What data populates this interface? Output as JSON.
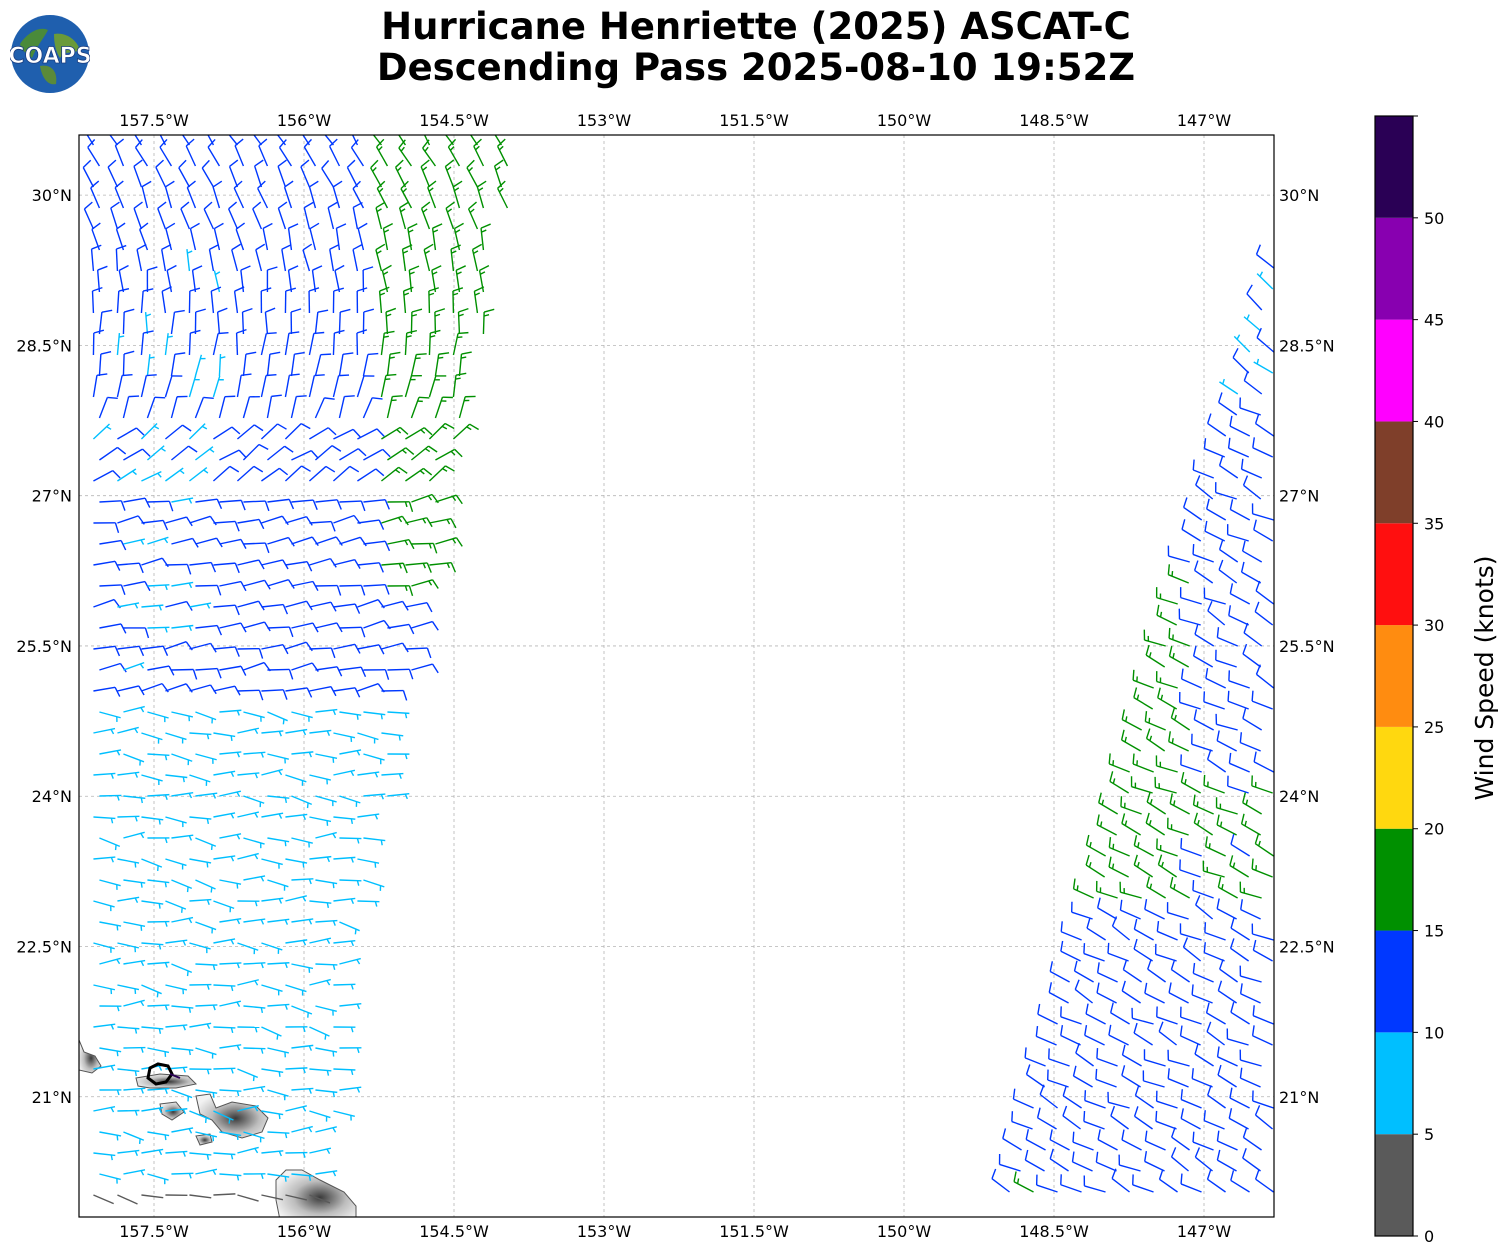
{
  "title": {
    "line1": "Hurricane Henriette (2025) ASCAT-C",
    "line2": "Descending Pass 2025-08-10 19:52Z"
  },
  "logo": {
    "text": "COAPS",
    "colors": {
      "ocean": "#1f5fae",
      "land": "#4a8a3a"
    }
  },
  "map": {
    "lon_range": [
      -158.25,
      -146.3
    ],
    "lat_range": [
      19.8,
      30.6
    ],
    "lon_ticks": [
      "157.5°W",
      "156°W",
      "154.5°W",
      "153°W",
      "151.5°W",
      "150°W",
      "148.5°W",
      "147°W"
    ],
    "lat_ticks": [
      "30°N",
      "28.5°N",
      "27°N",
      "25.5°N",
      "24°N",
      "22.5°N",
      "21°N"
    ],
    "gridlines": true,
    "islands": [
      "Oahu",
      "Molokai",
      "Lanai",
      "Maui",
      "Hawaii"
    ],
    "storm_symbol": "hurricane-position-marker"
  },
  "colorbar": {
    "label": "Wind Speed (knots)",
    "ticks": [
      "0",
      "5",
      "10",
      "15",
      "20",
      "25",
      "30",
      "35",
      "40",
      "45",
      "50"
    ],
    "bins": [
      {
        "range": [
          0,
          5
        ],
        "color": "#5a5a5a"
      },
      {
        "range": [
          5,
          10
        ],
        "color": "#00bfff"
      },
      {
        "range": [
          10,
          15
        ],
        "color": "#0038ff"
      },
      {
        "range": [
          15,
          20
        ],
        "color": "#009000"
      },
      {
        "range": [
          20,
          25
        ],
        "color": "#ffd80f"
      },
      {
        "range": [
          25,
          30
        ],
        "color": "#ff8c10"
      },
      {
        "range": [
          30,
          35
        ],
        "color": "#ff0f0f"
      },
      {
        "range": [
          35,
          40
        ],
        "color": "#7f3f2a"
      },
      {
        "range": [
          40,
          45
        ],
        "color": "#ff00ff"
      },
      {
        "range": [
          45,
          50
        ],
        "color": "#8800b0"
      },
      {
        "range": [
          50,
          55
        ],
        "color": "#2a0055"
      }
    ]
  }
}
